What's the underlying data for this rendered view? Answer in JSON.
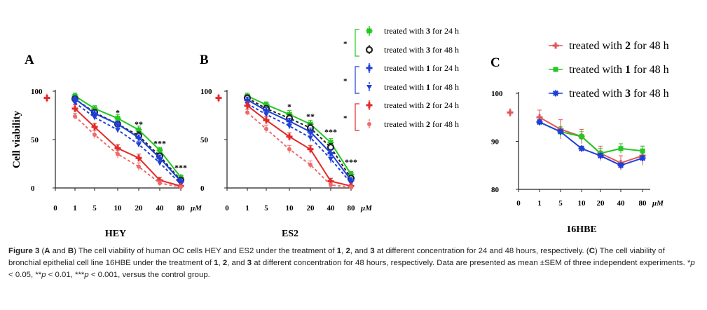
{
  "chart_data": [
    {
      "type": "line",
      "panel_label": "A",
      "title": "HEY",
      "ylabel": "Cell viability",
      "x_categories": [
        "0",
        "1",
        "5",
        "10",
        "20",
        "40",
        "80"
      ],
      "x_unit": "μM",
      "y_ticks": [
        "0",
        "50",
        "100"
      ],
      "ylim": [
        0,
        100
      ],
      "control_value": 93,
      "significance": [
        {
          "x_index": 3,
          "label": "*",
          "y": 75
        },
        {
          "x_index": 4,
          "label": "**",
          "y": 63
        },
        {
          "x_index": 5,
          "label": "***",
          "y": 43
        },
        {
          "x_index": 6,
          "label": "***",
          "y": 18
        }
      ],
      "series": [
        {
          "name": "3 for 24 h",
          "color": "#22c722",
          "style": "solid",
          "marker": "star",
          "values": [
            95,
            82,
            72,
            60,
            39,
            11
          ],
          "errors": [
            3,
            3,
            4,
            4,
            3,
            2
          ]
        },
        {
          "name": "3 for 48 h",
          "color": "#222222",
          "style": "dashed",
          "marker": "ring",
          "values": [
            92,
            78,
            66,
            54,
            33,
            8
          ],
          "errors": [
            3,
            3,
            3,
            4,
            3,
            2
          ]
        },
        {
          "name": "1 for 24 h",
          "color": "#1f3fd9",
          "style": "solid",
          "marker": "plus",
          "values": [
            92,
            77,
            66,
            52,
            31,
            7
          ],
          "errors": [
            3,
            3,
            3,
            3,
            3,
            2
          ]
        },
        {
          "name": "1 for 48 h",
          "color": "#1f3fd9",
          "style": "dashed",
          "marker": "tri",
          "values": [
            88,
            73,
            60,
            45,
            26,
            4
          ],
          "errors": [
            3,
            3,
            3,
            3,
            3,
            2
          ]
        },
        {
          "name": "2 for 24 h",
          "color": "#e22a2a",
          "style": "solid",
          "marker": "plus",
          "values": [
            82,
            63,
            41,
            31,
            8,
            2
          ],
          "errors": [
            4,
            4,
            4,
            4,
            3,
            2
          ]
        },
        {
          "name": "2 for 48 h",
          "color": "#ee6b6b",
          "style": "dashed",
          "marker": "dot",
          "values": [
            74,
            55,
            35,
            22,
            5,
            1
          ],
          "errors": [
            3,
            4,
            4,
            4,
            3,
            1
          ]
        }
      ]
    },
    {
      "type": "line",
      "panel_label": "B",
      "title": "ES2",
      "x_categories": [
        "0",
        "1",
        "5",
        "10",
        "20",
        "40",
        "80"
      ],
      "x_unit": "μM",
      "y_ticks": [
        "0",
        "50",
        "100"
      ],
      "ylim": [
        0,
        100
      ],
      "control_value": 93,
      "significance": [
        {
          "x_index": 3,
          "label": "*",
          "y": 81
        },
        {
          "x_index": 4,
          "label": "**",
          "y": 71
        },
        {
          "x_index": 5,
          "label": "***",
          "y": 55
        },
        {
          "x_index": 6,
          "label": "***",
          "y": 24
        }
      ],
      "series": [
        {
          "name": "3 for 24 h",
          "color": "#22c722",
          "style": "solid",
          "marker": "star",
          "values": [
            95,
            86,
            76,
            66,
            47,
            14
          ],
          "errors": [
            3,
            3,
            4,
            4,
            4,
            3
          ]
        },
        {
          "name": "3 for 48 h",
          "color": "#222222",
          "style": "dashed",
          "marker": "ring",
          "values": [
            93,
            82,
            72,
            62,
            42,
            10
          ],
          "errors": [
            3,
            3,
            4,
            4,
            4,
            3
          ]
        },
        {
          "name": "1 for 24 h",
          "color": "#1f3fd9",
          "style": "solid",
          "marker": "plus",
          "values": [
            91,
            80,
            69,
            58,
            36,
            8
          ],
          "errors": [
            3,
            3,
            3,
            4,
            4,
            2
          ]
        },
        {
          "name": "1 for 48 h",
          "color": "#1f3fd9",
          "style": "dashed",
          "marker": "tri",
          "values": [
            87,
            76,
            64,
            52,
            30,
            5
          ],
          "errors": [
            3,
            3,
            3,
            4,
            4,
            2
          ]
        },
        {
          "name": "2 for 24 h",
          "color": "#e22a2a",
          "style": "solid",
          "marker": "plus",
          "values": [
            85,
            70,
            53,
            40,
            7,
            2
          ],
          "errors": [
            4,
            4,
            4,
            4,
            3,
            2
          ]
        },
        {
          "name": "2 for 48 h",
          "color": "#ee6b6b",
          "style": "dashed",
          "marker": "dot",
          "values": [
            78,
            61,
            40,
            24,
            3,
            1
          ],
          "errors": [
            3,
            4,
            4,
            4,
            2,
            1
          ]
        }
      ]
    },
    {
      "type": "line",
      "panel_label": "C",
      "title": "16HBE",
      "x_categories": [
        "0",
        "1",
        "5",
        "10",
        "20",
        "40",
        "80"
      ],
      "x_unit": "μM",
      "y_ticks": [
        "80",
        "90",
        "100"
      ],
      "ylim": [
        80,
        100
      ],
      "control_value": 96,
      "series": [
        {
          "name": "treated with 2 for 48 h",
          "color": "#e25555",
          "style": "solid",
          "marker": "plus",
          "values": [
            95,
            92.5,
            91,
            87.5,
            85.5,
            87
          ],
          "errors": [
            1.5,
            2,
            1.5,
            1.5,
            1.5,
            2
          ]
        },
        {
          "name": "treated with 1 for 48 h",
          "color": "#22c722",
          "style": "solid",
          "marker": "square",
          "values": [
            94,
            92,
            91,
            87.5,
            88.5,
            88
          ],
          "errors": [
            0.5,
            1,
            1,
            1,
            1,
            1
          ]
        },
        {
          "name": "treated with 3 for 48 h",
          "color": "#1f3fd9",
          "style": "solid",
          "marker": "star",
          "values": [
            94,
            92,
            88.5,
            87,
            85,
            86.5
          ],
          "errors": [
            0.5,
            0.5,
            0.5,
            0.5,
            0.5,
            0.5
          ]
        }
      ]
    }
  ],
  "legend_ab": {
    "groups": [
      {
        "star": "*",
        "items": [
          {
            "prefix": "treated with ",
            "bold": "3",
            "suffix": " for 24 h"
          },
          {
            "prefix": "treated with ",
            "bold": "3",
            "suffix": " for 48 h"
          }
        ]
      },
      {
        "star": "*",
        "items": [
          {
            "prefix": "treated with ",
            "bold": "1",
            "suffix": " for 24 h"
          },
          {
            "prefix": "treated with ",
            "bold": "1",
            "suffix": " for 48 h"
          }
        ]
      },
      {
        "star": "*",
        "items": [
          {
            "prefix": "treated with ",
            "bold": "2",
            "suffix": " for 24 h"
          },
          {
            "prefix": "treated with ",
            "bold": "2",
            "suffix": " for 48 h"
          }
        ]
      }
    ]
  },
  "legend_c": [
    {
      "prefix": "treated with ",
      "bold": "2",
      "suffix": " for 48 h"
    },
    {
      "prefix": "treated with ",
      "bold": "1",
      "suffix": " for 48 h"
    },
    {
      "prefix": "treated with ",
      "bold": "3",
      "suffix": " for 48 h"
    }
  ],
  "caption": {
    "figure_label": "Figure 3",
    "segments": [
      {
        "t": "Figure 3",
        "b": true
      },
      {
        "t": " (",
        "b": false
      },
      {
        "t": "A",
        "b": true
      },
      {
        "t": " and ",
        "b": false
      },
      {
        "t": "B",
        "b": true
      },
      {
        "t": ") The cell viability of human OC cells HEY and ES2 under the treatment of ",
        "b": false
      },
      {
        "t": "1",
        "b": true
      },
      {
        "t": ", ",
        "b": false
      },
      {
        "t": "2",
        "b": true
      },
      {
        "t": ", and ",
        "b": false
      },
      {
        "t": "3",
        "b": true
      },
      {
        "t": " at different concentration for 24 and 48 hours, respectively. (",
        "b": false
      },
      {
        "t": "C",
        "b": true
      },
      {
        "t": ") The cell viability of bronchial epithelial cell line 16HBE under the treatment of ",
        "b": false
      },
      {
        "t": "1",
        "b": true
      },
      {
        "t": ", ",
        "b": false
      },
      {
        "t": "2",
        "b": true
      },
      {
        "t": ", and ",
        "b": false
      },
      {
        "t": "3",
        "b": true
      },
      {
        "t": " at different concentration for 48 hours, respectively. Data are presented as mean ±SEM of three independent experiments. *",
        "b": false
      },
      {
        "t": "p",
        "b": false,
        "i": true
      },
      {
        "t": " < 0.05, **",
        "b": false
      },
      {
        "t": "p",
        "b": false,
        "i": true
      },
      {
        "t": " < 0.01, ***",
        "b": false
      },
      {
        "t": "p",
        "b": false,
        "i": true
      },
      {
        "t": " < 0.001, versus the control group.",
        "b": false
      }
    ]
  }
}
